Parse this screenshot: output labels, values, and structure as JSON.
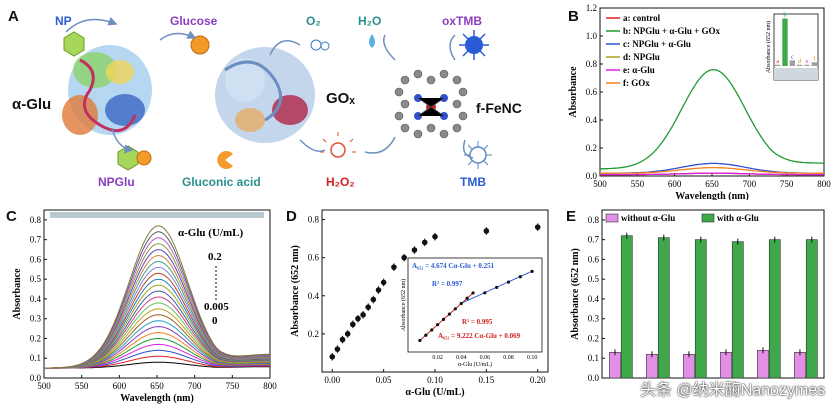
{
  "panel_labels": {
    "A": "A",
    "B": "B",
    "C": "C",
    "D": "D",
    "E": "E"
  },
  "schematic": {
    "np": "NP",
    "glucose": "Glucose",
    "o2": "O₂",
    "h2o": "H₂O",
    "oxtmb": "oxTMB",
    "alpha_glu": "α-Glu",
    "gox": "GOₓ",
    "fenc": "f-FeNC",
    "npglu": "NPGlu",
    "gluconic": "Gluconic acid",
    "h2o2": "H₂O₂",
    "tmb": "TMB"
  },
  "colors": {
    "accent_blue": "#2a5bd7",
    "accent_purple": "#8a3fbf",
    "accent_red": "#d42020",
    "accent_teal": "#2a8f8f"
  },
  "chart_data": [
    {
      "id": "B",
      "type": "line",
      "xlabel": "Wavelength (nm)",
      "ylabel": "Absorbance",
      "xlim": [
        500,
        800
      ],
      "ylim": [
        0,
        1.2
      ],
      "xticks": [
        500,
        550,
        600,
        650,
        700,
        750,
        800
      ],
      "yticks": [
        0.0,
        0.2,
        0.4,
        0.6,
        0.8,
        1.0,
        1.2
      ],
      "series": [
        {
          "name": "a: control",
          "color": "#e02020",
          "peak": 0.02,
          "base": 0.01
        },
        {
          "name": "b: NPGlu + α-Glu + GOx",
          "color": "#1f9a2e",
          "peak": 0.76,
          "base": 0.05
        },
        {
          "name": "c: NPGlu + α-Glu",
          "color": "#3050d0",
          "peak": 0.09,
          "base": 0.02
        },
        {
          "name": "d: NPGlu",
          "color": "#b0a020",
          "peak": 0.02,
          "base": 0.01
        },
        {
          "name": "e: α-Glu",
          "color": "#e020e0",
          "peak": 0.02,
          "base": 0.01
        },
        {
          "name": "f: GOx",
          "color": "#f08020",
          "peak": 0.06,
          "base": 0.02
        }
      ],
      "inset": {
        "ylabel": "Absorbance (652 nm)",
        "categories": [
          "a",
          "b",
          "c",
          "d",
          "e",
          "f"
        ],
        "values": [
          0.02,
          0.76,
          0.09,
          0.02,
          0.02,
          0.06
        ],
        "highlight": "b"
      }
    },
    {
      "id": "C",
      "type": "line",
      "xlabel": "Wavelength (nm)",
      "ylabel": "Absorbance",
      "xlim": [
        500,
        800
      ],
      "ylim": [
        0,
        0.85
      ],
      "xticks": [
        500,
        550,
        600,
        650,
        700,
        750,
        800
      ],
      "yticks": [
        0.0,
        0.1,
        0.2,
        0.3,
        0.4,
        0.5,
        0.6,
        0.7,
        0.8
      ],
      "series_peaks": [
        0.08,
        0.11,
        0.14,
        0.17,
        0.2,
        0.23,
        0.26,
        0.29,
        0.32,
        0.35,
        0.38,
        0.41,
        0.44,
        0.47,
        0.5,
        0.53,
        0.56,
        0.59,
        0.62,
        0.65,
        0.68,
        0.71,
        0.74,
        0.77
      ],
      "annotation_title": "α-Glu (U/mL)",
      "annotation_top": "0.2",
      "annotation_mid": "0.005",
      "annotation_bottom": "0"
    },
    {
      "id": "D",
      "type": "scatter",
      "xlabel": "α-Glu (U/mL)",
      "ylabel": "Absorbance (652 nm)",
      "xlim": [
        -0.01,
        0.21
      ],
      "ylim": [
        0.0,
        0.85
      ],
      "xticks": [
        0.0,
        0.05,
        0.1,
        0.15,
        0.2
      ],
      "yticks": [
        0.2,
        0.4,
        0.6,
        0.8
      ],
      "x": [
        0.0,
        0.005,
        0.01,
        0.015,
        0.02,
        0.025,
        0.03,
        0.035,
        0.04,
        0.045,
        0.05,
        0.06,
        0.07,
        0.08,
        0.09,
        0.1,
        0.15,
        0.2
      ],
      "y": [
        0.08,
        0.12,
        0.17,
        0.2,
        0.25,
        0.28,
        0.3,
        0.34,
        0.38,
        0.43,
        0.47,
        0.55,
        0.6,
        0.64,
        0.68,
        0.71,
        0.74,
        0.76
      ],
      "inset": {
        "ylabel": "Absorbance (652 nm)",
        "xlabel": "α-Glu (U/mL)",
        "xticks": [
          0.02,
          0.04,
          0.06,
          0.08,
          0.1
        ],
        "eq_blue": "A₆₅₂ = 4.674 Cα-Glu + 0.251",
        "r2_blue": "R² = 0.997",
        "eq_red": "A₆₅₂ = 9.222 Cα-Glu + 0.069",
        "r2_red": "R² = 0.995"
      }
    },
    {
      "id": "E",
      "type": "bar",
      "ylabel": "Absorbance (652 nm)",
      "ylim": [
        0,
        0.85
      ],
      "yticks": [
        0.0,
        0.1,
        0.2,
        0.3,
        0.4,
        0.5,
        0.6,
        0.7,
        0.8
      ],
      "series": [
        {
          "name": "without α-Glu",
          "color": "#e28fe6",
          "values": [
            0.13,
            0.12,
            0.12,
            0.13,
            0.14,
            0.13
          ]
        },
        {
          "name": "with α-Glu",
          "color": "#3fa84a",
          "values": [
            0.72,
            0.71,
            0.7,
            0.69,
            0.7,
            0.7
          ]
        }
      ]
    }
  ],
  "watermark": "头条 @纳米酶Nanozymes"
}
